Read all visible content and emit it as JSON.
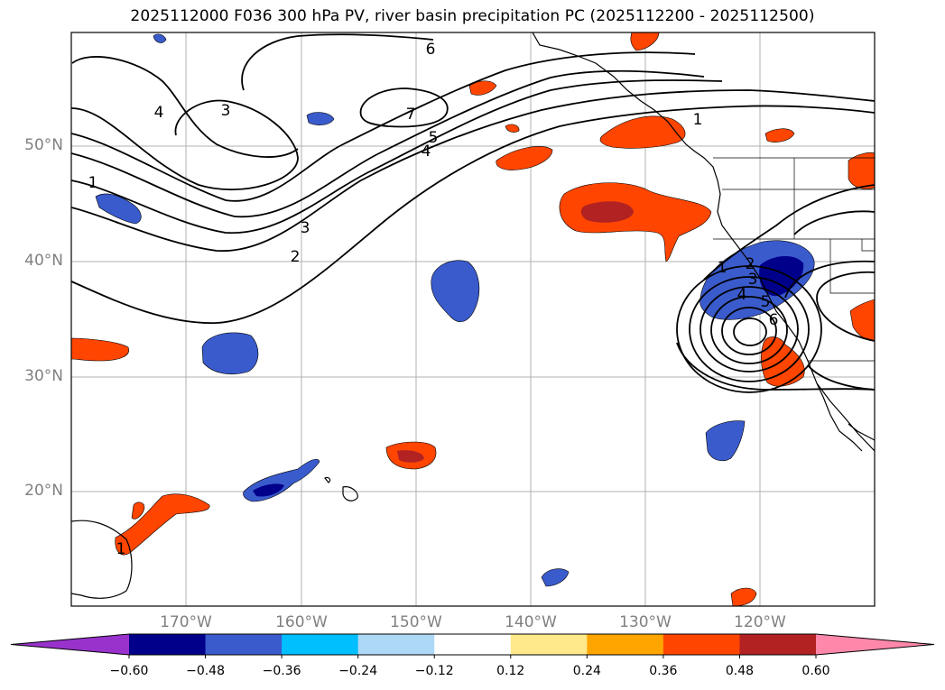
{
  "title": "2025112000 F036 300 hPa PV, river basin precipitation PC (2025112200 - 2025112500)",
  "map": {
    "lat_labels": [
      "50°N",
      "40°N",
      "30°N",
      "20°N"
    ],
    "lon_labels": [
      "170°W",
      "160°W",
      "150°W",
      "140°W",
      "130°W",
      "120°W"
    ],
    "pv_contour_labels": [
      "6",
      "7",
      "5",
      "4",
      "3",
      "2",
      "1",
      "4",
      "3",
      "1",
      "1",
      "2",
      "3",
      "4",
      "5",
      "6",
      "1"
    ]
  },
  "colorbar": {
    "ticks": [
      "−0.60",
      "−0.48",
      "−0.36",
      "−0.24",
      "−0.12",
      "0.12",
      "0.24",
      "0.36",
      "0.48",
      "0.60"
    ],
    "colors": [
      "#9932cc",
      "#00008b",
      "#3a5bcc",
      "#00bfff",
      "#add8f6",
      "#ffffff",
      "#ffe98a",
      "#ffa500",
      "#ff4500",
      "#b22222",
      "#ff88aa"
    ]
  }
}
